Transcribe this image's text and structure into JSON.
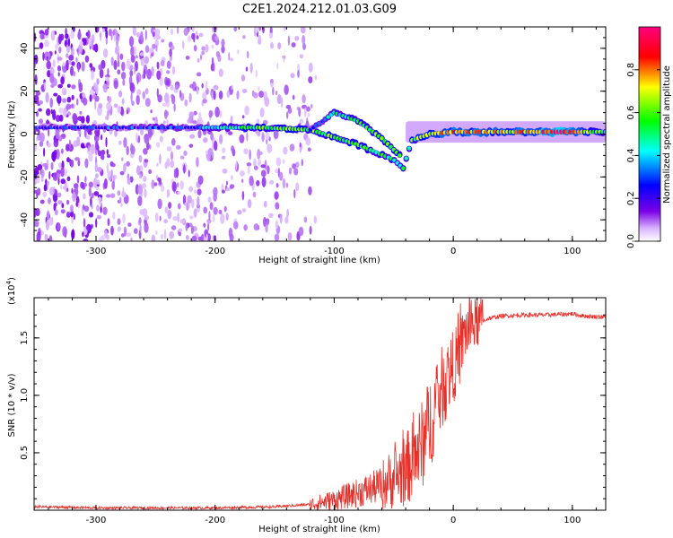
{
  "figure": {
    "title": "C2E1.2024.212.01.03.G09"
  },
  "chart_data": [
    {
      "type": "heatmap",
      "xlabel": "Height of straight line (km)",
      "ylabel": "Frequency (Hz)",
      "xlim": [
        -352,
        128
      ],
      "ylim": [
        -50,
        50
      ],
      "xticks": [
        -300,
        -200,
        -100,
        0,
        100
      ],
      "yticks": [
        -40,
        -20,
        0,
        20,
        40
      ],
      "colorbar": {
        "label": "Normalized spectral amplitude",
        "range": [
          0,
          1
        ],
        "ticks": [
          0.0,
          0.2,
          0.4,
          0.6,
          0.8
        ],
        "colormap": [
          "#ffffff",
          "#7a00e6",
          "#0000ff",
          "#00ffff",
          "#00ff00",
          "#ffff00",
          "#ff0000",
          "#ff0080"
        ]
      },
      "main_track": [
        {
          "x": -352,
          "f": 3.0,
          "a": 0.25
        },
        {
          "x": -220,
          "f": 3.0,
          "a": 0.3
        },
        {
          "x": -160,
          "f": 3.0,
          "a": 0.55
        },
        {
          "x": -120,
          "f": 2.0,
          "a": 0.6
        },
        {
          "x": -80,
          "f": -5.0,
          "a": 0.55
        },
        {
          "x": -50,
          "f": -12.0,
          "a": 0.5
        },
        {
          "x": -42,
          "f": -16.0,
          "a": 0.45
        },
        {
          "x": -35,
          "f": -3.0,
          "a": 0.55
        },
        {
          "x": -20,
          "f": 0.0,
          "a": 0.75
        },
        {
          "x": 0,
          "f": 1.0,
          "a": 0.8
        },
        {
          "x": 50,
          "f": 1.0,
          "a": 0.7
        },
        {
          "x": 90,
          "f": 1.0,
          "a": 0.95
        },
        {
          "x": 128,
          "f": 1.0,
          "a": 0.55
        }
      ],
      "secondary_track": [
        {
          "x": -120,
          "f": 2.0,
          "a": 0.3
        },
        {
          "x": -100,
          "f": 10.0,
          "a": 0.45
        },
        {
          "x": -80,
          "f": 6.0,
          "a": 0.55
        },
        {
          "x": -60,
          "f": -2.0,
          "a": 0.6
        },
        {
          "x": -45,
          "f": -10.0,
          "a": 0.5
        }
      ]
    },
    {
      "type": "line",
      "xlabel": "Height of straight line (km)",
      "ylabel": "SNR (10 * v/v)",
      "y_multiplier": "(x10",
      "y_multiplier_exp": "4",
      "y_multiplier_close": ")",
      "xlim": [
        -352,
        128
      ],
      "ylim": [
        0,
        1.85
      ],
      "xticks": [
        -300,
        -200,
        -100,
        0,
        100
      ],
      "yticks": [
        0.5,
        1.0,
        1.5
      ],
      "yticklabels": [
        "0.5",
        "1.0",
        "1.5"
      ],
      "series": [
        {
          "color": "#e8302a",
          "x": [
            -352,
            -300,
            -250,
            -200,
            -150,
            -120,
            -100,
            -80,
            -60,
            -50,
            -40,
            -30,
            -25,
            -20,
            -15,
            -10,
            -5,
            0,
            5,
            10,
            15,
            20,
            30,
            40,
            60,
            80,
            100,
            110,
            128
          ],
          "y": [
            0.03,
            0.02,
            0.02,
            0.02,
            0.03,
            0.05,
            0.09,
            0.15,
            0.22,
            0.28,
            0.35,
            0.5,
            0.6,
            0.75,
            0.9,
            1.05,
            1.15,
            1.25,
            1.35,
            1.55,
            1.6,
            1.63,
            1.67,
            1.69,
            1.7,
            1.7,
            1.71,
            1.69,
            1.68
          ]
        }
      ]
    }
  ]
}
